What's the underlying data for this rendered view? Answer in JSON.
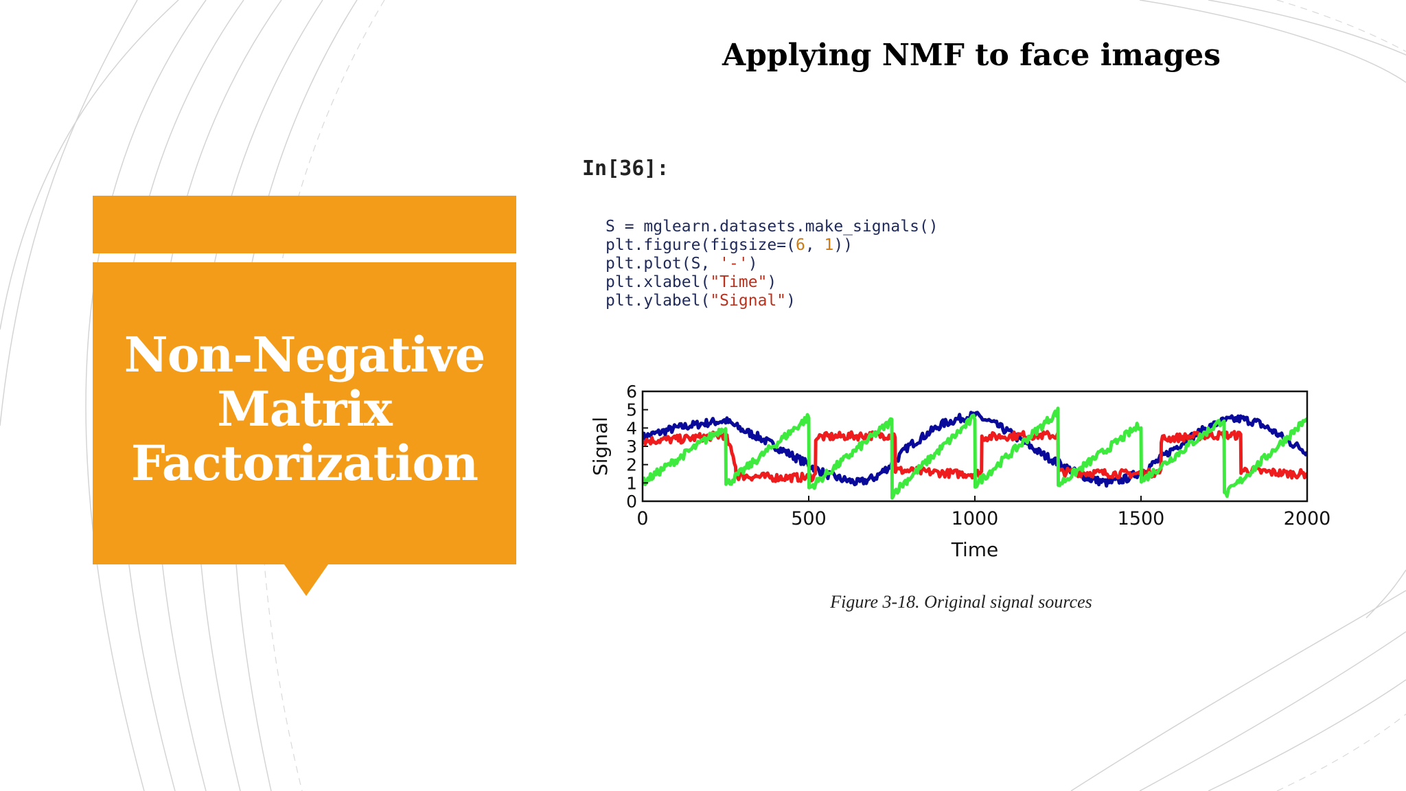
{
  "slide": {
    "title": "Applying NMF to face images",
    "panel_title_lines": [
      "Non-Negative",
      "Matrix",
      "Factorization"
    ]
  },
  "notebook": {
    "prompt": "In[36]:",
    "code": [
      {
        "parts": [
          {
            "t": "S = mglearn.datasets.make_signals()",
            "c": "plain"
          }
        ]
      },
      {
        "parts": [
          {
            "t": "plt.figure(figsize=(",
            "c": "plain"
          },
          {
            "t": "6",
            "c": "num"
          },
          {
            "t": ", ",
            "c": "plain"
          },
          {
            "t": "1",
            "c": "num"
          },
          {
            "t": "))",
            "c": "plain"
          }
        ]
      },
      {
        "parts": [
          {
            "t": "plt.plot(S, ",
            "c": "plain"
          },
          {
            "t": "'-'",
            "c": "str"
          },
          {
            "t": ")",
            "c": "plain"
          }
        ]
      },
      {
        "parts": [
          {
            "t": "plt.xlabel(",
            "c": "plain"
          },
          {
            "t": "\"Time\"",
            "c": "str"
          },
          {
            "t": ")",
            "c": "plain"
          }
        ]
      },
      {
        "parts": [
          {
            "t": "plt.ylabel(",
            "c": "plain"
          },
          {
            "t": "\"Signal\"",
            "c": "str"
          },
          {
            "t": ")",
            "c": "plain"
          }
        ]
      }
    ]
  },
  "figure": {
    "caption": "Figure 3-18. Original signal sources"
  },
  "colors": {
    "accent_orange": "#f39c1a",
    "series_blue": "#0a0a9a",
    "series_red": "#ee1c1c",
    "series_green": "#3dea3d"
  },
  "chart_data": {
    "type": "line",
    "xlabel": "Time",
    "ylabel": "Signal",
    "xlim": [
      0,
      2000
    ],
    "ylim": [
      0,
      6
    ],
    "xticks": [
      "0",
      "500",
      "1000",
      "1500",
      "2000"
    ],
    "yticks": [
      "0",
      "1",
      "2",
      "3",
      "4",
      "5",
      "6"
    ],
    "series": [
      {
        "color": "#0a0a9a",
        "x": [
          0,
          100,
          200,
          250,
          300,
          350,
          400,
          450,
          500,
          550,
          600,
          650,
          700,
          750,
          800,
          850,
          900,
          950,
          1000,
          1050,
          1100,
          1150,
          1200,
          1250,
          1300,
          1350,
          1400,
          1450,
          1500,
          1550,
          1600,
          1650,
          1700,
          1750,
          1800,
          1850,
          1900,
          1950,
          2000
        ],
        "y": [
          3.5,
          4.0,
          4.3,
          4.4,
          3.9,
          3.5,
          3.0,
          2.5,
          2.0,
          1.5,
          1.2,
          1.0,
          1.3,
          2.0,
          3.0,
          3.6,
          4.2,
          4.5,
          4.7,
          4.3,
          3.8,
          3.2,
          2.6,
          2.1,
          1.6,
          1.2,
          1.0,
          1.2,
          1.6,
          2.2,
          2.9,
          3.5,
          4.0,
          4.4,
          4.5,
          4.3,
          3.8,
          3.2,
          2.7
        ]
      },
      {
        "color": "#ee1c1c",
        "x": [
          0,
          120,
          240,
          250,
          280,
          281,
          400,
          500,
          520,
          521,
          700,
          750,
          760,
          761,
          950,
          1000,
          1020,
          1021,
          1150,
          1230,
          1250,
          1251,
          1450,
          1500,
          1560,
          1561,
          1700,
          1750,
          1800,
          1801,
          1950,
          2000
        ],
        "y": [
          3.3,
          3.4,
          3.6,
          3.6,
          2.0,
          1.4,
          1.3,
          1.3,
          1.4,
          3.5,
          3.6,
          3.6,
          3.6,
          1.7,
          1.5,
          1.5,
          1.6,
          3.5,
          3.6,
          3.6,
          3.6,
          1.6,
          1.5,
          1.5,
          1.6,
          3.4,
          3.6,
          3.6,
          3.6,
          1.7,
          1.5,
          1.5
        ]
      },
      {
        "color": "#3dea3d",
        "x": [
          0,
          250,
          251,
          500,
          501,
          750,
          751,
          1000,
          1001,
          1250,
          1251,
          1500,
          1501,
          1750,
          1751,
          2000
        ],
        "y": [
          1.0,
          4.1,
          0.9,
          4.6,
          0.7,
          4.4,
          0.4,
          4.6,
          0.9,
          4.9,
          0.9,
          4.2,
          1.1,
          4.5,
          0.3,
          4.5
        ]
      }
    ]
  }
}
